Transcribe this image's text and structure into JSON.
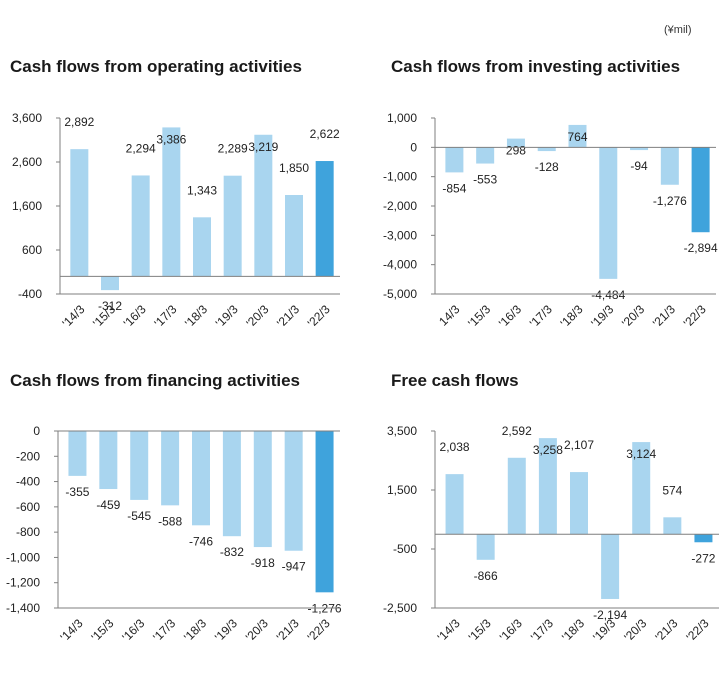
{
  "unit": "(¥mil)",
  "colors": {
    "bar": "#a9d5ef",
    "highlight": "#3fa3dc",
    "axis": "#7f7f7f"
  },
  "chart_data": [
    {
      "type": "bar",
      "title": "Cash flows from operating activities",
      "categories": [
        "'14/3",
        "'15/3",
        "'16/3",
        "'17/3",
        "'18/3",
        "'19/3",
        "'20/3",
        "'21/3",
        "'22/3"
      ],
      "values": [
        2892,
        -312,
        2294,
        3386,
        1343,
        2289,
        3219,
        1850,
        2622
      ],
      "data_labels": [
        "2,892",
        "-312",
        "2,294",
        "3,386",
        "1,343",
        "2,289",
        "3,219",
        "1,850",
        "2,622"
      ],
      "yticks": [
        3600,
        2600,
        1600,
        600,
        -400
      ],
      "ytick_labels": [
        "3,600",
        "2,600",
        "1,600",
        "600",
        "-400"
      ],
      "ylim": [
        -400,
        3600
      ],
      "highlight_index": 8
    },
    {
      "type": "bar",
      "title": "Cash flows from investing activities",
      "categories": [
        "14/3",
        "'15/3",
        "'16/3",
        "'17/3",
        "'18/3",
        "'19/3",
        "'20/3",
        "'21/3",
        "'22/3"
      ],
      "values": [
        -854,
        -553,
        298,
        -128,
        764,
        -4484,
        -94,
        -1276,
        -2894
      ],
      "data_labels": [
        "-854",
        "-553",
        "298",
        "-128",
        "764",
        "-4,484",
        "-94",
        "-1,276",
        "-2,894"
      ],
      "yticks": [
        1000,
        0,
        -1000,
        -2000,
        -3000,
        -4000,
        -5000
      ],
      "ytick_labels": [
        "1,000",
        "0",
        "-1,000",
        "-2,000",
        "-3,000",
        "-4,000",
        "-5,000"
      ],
      "ylim": [
        -5000,
        1000
      ],
      "highlight_index": 8
    },
    {
      "type": "bar",
      "title": "Cash flows from financing activities",
      "categories": [
        "'14/3",
        "'15/3",
        "'16/3",
        "'17/3",
        "'18/3",
        "'19/3",
        "'20/3",
        "'21/3",
        "'22/3"
      ],
      "values": [
        -355,
        -459,
        -545,
        -588,
        -746,
        -832,
        -918,
        -947,
        -1276
      ],
      "data_labels": [
        "-355",
        "-459",
        "-545",
        "-588",
        "-746",
        "-832",
        "-918",
        "-947",
        "-1,276"
      ],
      "yticks": [
        0,
        -200,
        -400,
        -600,
        -800,
        -1000,
        -1200,
        -1400
      ],
      "ytick_labels": [
        "0",
        "-200",
        "-400",
        "-600",
        "-800",
        "-1,000",
        "-1,200",
        "-1,400"
      ],
      "ylim": [
        -1400,
        0
      ],
      "highlight_index": 8
    },
    {
      "type": "bar",
      "title": "Free cash flows",
      "categories": [
        "'14/3",
        "'15/3",
        "'16/3",
        "'17/3",
        "'18/3",
        "'19/3",
        "'20/3",
        "'21/3",
        "'22/3"
      ],
      "values": [
        2038,
        -866,
        2592,
        3258,
        2107,
        -2194,
        3124,
        574,
        -272
      ],
      "data_labels": [
        "2,038",
        "-866",
        "2,592",
        "3,258",
        "2,107",
        "-2,194",
        "3,124",
        "574",
        "-272"
      ],
      "yticks": [
        3500,
        1500,
        -500,
        -2500
      ],
      "ytick_labels": [
        "3,500",
        "1,500",
        "-500",
        "-2,500"
      ],
      "ylim": [
        -2500,
        3500
      ],
      "highlight_index": 8
    }
  ]
}
